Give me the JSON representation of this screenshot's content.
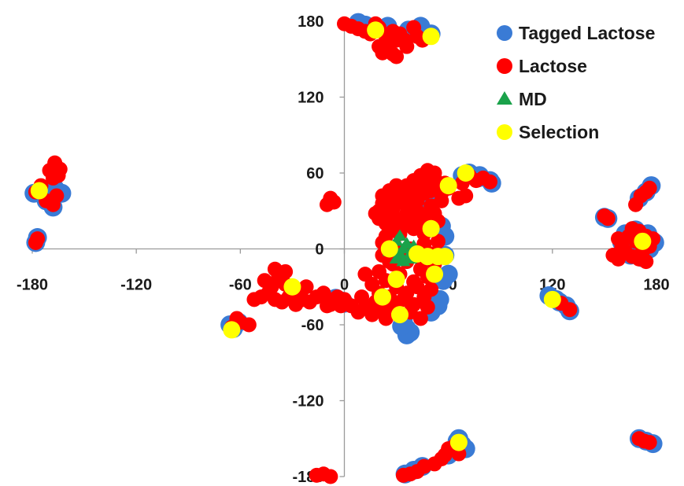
{
  "chart_data": {
    "type": "scatter",
    "title": "",
    "xlabel": "",
    "ylabel": "",
    "xlim": [
      -180,
      180
    ],
    "ylim": [
      -180,
      180
    ],
    "x_ticks": [
      -180,
      -120,
      -60,
      0,
      60,
      120,
      180
    ],
    "y_ticks": [
      180,
      120,
      60,
      0,
      -60,
      -120,
      -180
    ],
    "grid": false,
    "legend_position": "top-right",
    "series": [
      {
        "name": "Tagged Lactose",
        "color": "#3a7bd5",
        "marker": "circle",
        "points": [
          [
            -178,
            5
          ],
          [
            -177,
            9
          ],
          [
            -179,
            44
          ],
          [
            -172,
            38
          ],
          [
            -168,
            33
          ],
          [
            -165,
            45
          ],
          [
            -163,
            44
          ],
          [
            -167,
            48
          ],
          [
            -64,
            -63
          ],
          [
            -61,
            -58
          ],
          [
            -66,
            -60
          ],
          [
            -2,
            -41
          ],
          [
            0,
            -43
          ],
          [
            -5,
            -39
          ],
          [
            8,
            179
          ],
          [
            12,
            177
          ],
          [
            25,
            176
          ],
          [
            37,
            173
          ],
          [
            44,
            176
          ],
          [
            50,
            170
          ],
          [
            45,
            168
          ],
          [
            34,
            -56
          ],
          [
            36,
            -63
          ],
          [
            38,
            -66
          ],
          [
            36,
            -68
          ],
          [
            33,
            -61
          ],
          [
            50,
            -50
          ],
          [
            54,
            -45
          ],
          [
            55,
            -40
          ],
          [
            57,
            -25
          ],
          [
            60,
            -20
          ],
          [
            58,
            -5
          ],
          [
            58,
            10
          ],
          [
            56,
            18
          ],
          [
            45,
            30
          ],
          [
            40,
            38
          ],
          [
            50,
            42
          ],
          [
            68,
            58
          ],
          [
            72,
            60
          ],
          [
            77,
            56
          ],
          [
            84,
            54
          ],
          [
            85,
            52
          ],
          [
            78,
            58
          ],
          [
            65,
            -152
          ],
          [
            68,
            -155
          ],
          [
            70,
            -158
          ],
          [
            63,
            -160
          ],
          [
            60,
            -163
          ],
          [
            66,
            -150
          ],
          [
            45,
            -172
          ],
          [
            40,
            -175
          ],
          [
            35,
            -178
          ],
          [
            118,
            -37
          ],
          [
            122,
            -40
          ],
          [
            124,
            -42
          ],
          [
            128,
            -45
          ],
          [
            130,
            -49
          ],
          [
            150,
            25
          ],
          [
            152,
            24
          ],
          [
            170,
            40
          ],
          [
            174,
            45
          ],
          [
            177,
            50
          ],
          [
            160,
            5
          ],
          [
            165,
            -5
          ],
          [
            172,
            -7
          ],
          [
            176,
            0
          ],
          [
            179,
            5
          ],
          [
            162,
            12
          ],
          [
            168,
            15
          ],
          [
            175,
            12
          ],
          [
            170,
            -150
          ],
          [
            174,
            -152
          ],
          [
            178,
            -154
          ]
        ]
      },
      {
        "name": "Lactose",
        "color": "#ff0000",
        "marker": "circle",
        "points": [
          [
            -178,
            5
          ],
          [
            -177,
            8
          ],
          [
            -178,
            45
          ],
          [
            -175,
            50
          ],
          [
            -172,
            38
          ],
          [
            -168,
            35
          ],
          [
            -166,
            42
          ],
          [
            -170,
            62
          ],
          [
            -167,
            68
          ],
          [
            -164,
            63
          ],
          [
            -165,
            58
          ],
          [
            -168,
            56
          ],
          [
            -62,
            -55
          ],
          [
            -65,
            -62
          ],
          [
            -60,
            -58
          ],
          [
            -55,
            -60
          ],
          [
            -52,
            -40
          ],
          [
            -48,
            -38
          ],
          [
            -44,
            -35
          ],
          [
            -40,
            -40
          ],
          [
            -36,
            -42
          ],
          [
            -32,
            -38
          ],
          [
            -28,
            -44
          ],
          [
            -24,
            -40
          ],
          [
            -20,
            -42
          ],
          [
            -16,
            -38
          ],
          [
            -10,
            -45
          ],
          [
            -6,
            -40
          ],
          [
            -46,
            -25
          ],
          [
            -42,
            -30
          ],
          [
            -38,
            -22
          ],
          [
            -34,
            -28
          ],
          [
            -30,
            -32
          ],
          [
            -26,
            -35
          ],
          [
            -22,
            -30
          ],
          [
            -40,
            -16
          ],
          [
            -34,
            -18
          ],
          [
            -12,
            -35
          ],
          [
            -8,
            -44
          ],
          [
            -4,
            -38
          ],
          [
            -2,
            -45
          ],
          [
            -8,
            40
          ],
          [
            -10,
            35
          ],
          [
            -6,
            37
          ],
          [
            0,
            178
          ],
          [
            4,
            176
          ],
          [
            8,
            174
          ],
          [
            12,
            172
          ],
          [
            15,
            170
          ],
          [
            20,
            175
          ],
          [
            24,
            168
          ],
          [
            28,
            172
          ],
          [
            30,
            165
          ],
          [
            32,
            170
          ],
          [
            35,
            165
          ],
          [
            36,
            160
          ],
          [
            40,
            175
          ],
          [
            42,
            168
          ],
          [
            45,
            165
          ],
          [
            20,
            160
          ],
          [
            25,
            158
          ],
          [
            28,
            154
          ],
          [
            22,
            155
          ],
          [
            30,
            152
          ],
          [
            18,
            178
          ],
          [
            0,
            -40
          ],
          [
            4,
            -45
          ],
          [
            8,
            -50
          ],
          [
            10,
            -38
          ],
          [
            12,
            -46
          ],
          [
            16,
            -52
          ],
          [
            18,
            -42
          ],
          [
            20,
            -35
          ],
          [
            22,
            -48
          ],
          [
            24,
            -55
          ],
          [
            26,
            -38
          ],
          [
            28,
            -45
          ],
          [
            30,
            -30
          ],
          [
            32,
            -52
          ],
          [
            34,
            -40
          ],
          [
            36,
            -35
          ],
          [
            38,
            -50
          ],
          [
            40,
            -44
          ],
          [
            42,
            -30
          ],
          [
            44,
            -55
          ],
          [
            46,
            -38
          ],
          [
            48,
            -46
          ],
          [
            50,
            -32
          ],
          [
            12,
            -20
          ],
          [
            16,
            -28
          ],
          [
            20,
            -18
          ],
          [
            24,
            -25
          ],
          [
            28,
            -12
          ],
          [
            32,
            -20
          ],
          [
            36,
            -10
          ],
          [
            40,
            -26
          ],
          [
            44,
            -16
          ],
          [
            48,
            -22
          ],
          [
            52,
            -12
          ],
          [
            22,
            -5
          ],
          [
            26,
            -10
          ],
          [
            30,
            -2
          ],
          [
            34,
            -8
          ],
          [
            38,
            0
          ],
          [
            42,
            -6
          ],
          [
            46,
            4
          ],
          [
            50,
            -4
          ],
          [
            54,
            6
          ],
          [
            22,
            5
          ],
          [
            24,
            10
          ],
          [
            26,
            14
          ],
          [
            28,
            20
          ],
          [
            30,
            24
          ],
          [
            32,
            12
          ],
          [
            34,
            18
          ],
          [
            36,
            28
          ],
          [
            38,
            22
          ],
          [
            40,
            16
          ],
          [
            42,
            30
          ],
          [
            44,
            20
          ],
          [
            46,
            12
          ],
          [
            48,
            26
          ],
          [
            50,
            34
          ],
          [
            52,
            28
          ],
          [
            54,
            22
          ],
          [
            56,
            38
          ],
          [
            20,
            30
          ],
          [
            22,
            36
          ],
          [
            24,
            26
          ],
          [
            26,
            40
          ],
          [
            28,
            32
          ],
          [
            30,
            44
          ],
          [
            32,
            38
          ],
          [
            34,
            46
          ],
          [
            36,
            34
          ],
          [
            38,
            42
          ],
          [
            40,
            48
          ],
          [
            42,
            38
          ],
          [
            44,
            50
          ],
          [
            46,
            44
          ],
          [
            48,
            52
          ],
          [
            50,
            46
          ],
          [
            52,
            56
          ],
          [
            54,
            50
          ],
          [
            56,
            44
          ],
          [
            58,
            52
          ],
          [
            60,
            48
          ],
          [
            24,
            20
          ],
          [
            20,
            24
          ],
          [
            18,
            28
          ],
          [
            22,
            42
          ],
          [
            26,
            46
          ],
          [
            30,
            50
          ],
          [
            36,
            50
          ],
          [
            40,
            54
          ],
          [
            44,
            58
          ],
          [
            48,
            62
          ],
          [
            52,
            60
          ],
          [
            68,
            52
          ],
          [
            72,
            58
          ],
          [
            76,
            54
          ],
          [
            80,
            56
          ],
          [
            84,
            53
          ],
          [
            70,
            42
          ],
          [
            66,
            40
          ],
          [
            64,
            -155
          ],
          [
            60,
            -158
          ],
          [
            66,
            -162
          ],
          [
            56,
            -166
          ],
          [
            52,
            -170
          ],
          [
            46,
            -172
          ],
          [
            42,
            -176
          ],
          [
            38,
            -178
          ],
          [
            34,
            -179
          ],
          [
            58,
            -163
          ],
          [
            -12,
            -178
          ],
          [
            -16,
            -179
          ],
          [
            -8,
            -180
          ],
          [
            120,
            -40
          ],
          [
            125,
            -43
          ],
          [
            130,
            -48
          ],
          [
            152,
            24
          ],
          [
            150,
            26
          ],
          [
            155,
            -5
          ],
          [
            158,
            -8
          ],
          [
            158,
            8
          ],
          [
            160,
            2
          ],
          [
            162,
            -2
          ],
          [
            164,
            10
          ],
          [
            166,
            -6
          ],
          [
            168,
            6
          ],
          [
            170,
            14
          ],
          [
            172,
            -2
          ],
          [
            174,
            10
          ],
          [
            176,
            2
          ],
          [
            178,
            8
          ],
          [
            166,
            16
          ],
          [
            170,
            -8
          ],
          [
            174,
            -10
          ],
          [
            168,
            35
          ],
          [
            171,
            42
          ],
          [
            174,
            45
          ],
          [
            176,
            48
          ],
          [
            170,
            -150
          ],
          [
            173,
            -152
          ],
          [
            176,
            -153
          ]
        ]
      },
      {
        "name": "MD",
        "color": "#1aa24a",
        "marker": "triangle",
        "points": [
          [
            26,
            -2
          ],
          [
            28,
            2
          ],
          [
            30,
            6
          ],
          [
            32,
            10
          ],
          [
            34,
            0
          ],
          [
            36,
            4
          ],
          [
            38,
            -4
          ],
          [
            40,
            2
          ],
          [
            42,
            -6
          ],
          [
            30,
            -8
          ],
          [
            34,
            -10
          ],
          [
            38,
            -8
          ],
          [
            32,
            -4
          ]
        ]
      },
      {
        "name": "Selection",
        "color": "#ffff00",
        "marker": "circle",
        "points": [
          [
            -176,
            46
          ],
          [
            -65,
            -64
          ],
          [
            -30,
            -30
          ],
          [
            18,
            173
          ],
          [
            50,
            168
          ],
          [
            26,
            0
          ],
          [
            42,
            -4
          ],
          [
            48,
            -6
          ],
          [
            54,
            -6
          ],
          [
            58,
            -6
          ],
          [
            50,
            16
          ],
          [
            52,
            -20
          ],
          [
            30,
            -24
          ],
          [
            22,
            -38
          ],
          [
            32,
            -52
          ],
          [
            60,
            50
          ],
          [
            70,
            60
          ],
          [
            120,
            -40
          ],
          [
            172,
            6
          ],
          [
            66,
            -153
          ]
        ]
      }
    ]
  }
}
